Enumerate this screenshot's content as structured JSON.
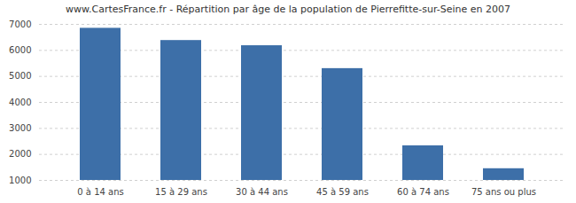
{
  "chart_data": {
    "type": "bar",
    "title": "www.CartesFrance.fr - Répartition par âge de la population de Pierrefitte-sur-Seine en 2007",
    "categories": [
      "0 à 14 ans",
      "15 à 29 ans",
      "30 à 44 ans",
      "45 à 59 ans",
      "60 à 74 ans",
      "75 ans ou plus"
    ],
    "values": [
      6850,
      6380,
      6180,
      5300,
      2330,
      1450
    ],
    "color": "#3d6fa8",
    "ylim": [
      1000,
      7000
    ],
    "yticks": [
      1000,
      2000,
      3000,
      4000,
      5000,
      6000,
      7000
    ],
    "grid": true
  }
}
